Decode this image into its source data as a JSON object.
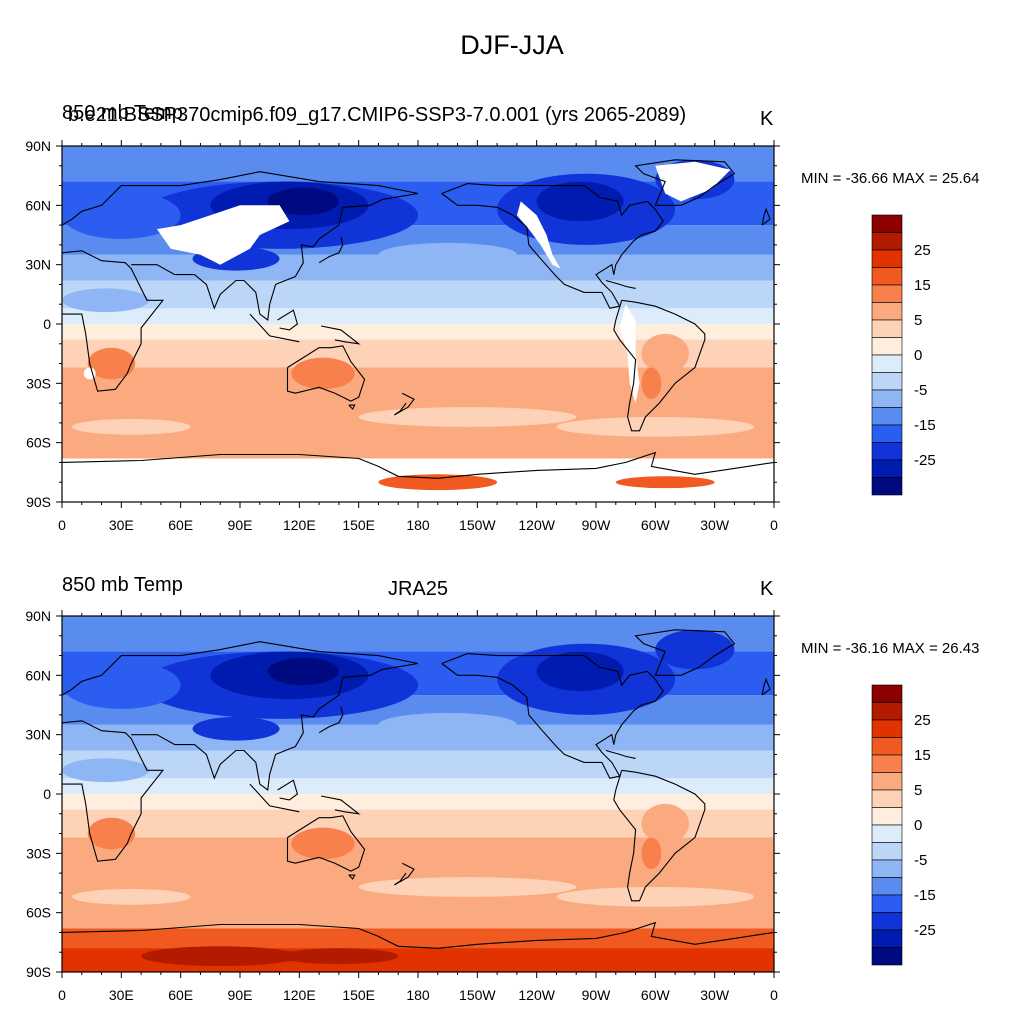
{
  "title": "DJF-JJA",
  "panels": [
    {
      "left_label": "850 mb Temp",
      "left_overlay": "b.e21.BSSP370cmip6.f09_g17.CMIP6-SSP3-7.0.001 (yrs 2065-2089)",
      "center_label": "",
      "units": "K",
      "min_text": "MIN = -36.66",
      "max_text": "MAX =  25.64",
      "missing_land": true
    },
    {
      "left_label": "850 mb Temp",
      "left_overlay": "",
      "center_label": "JRA25",
      "units": "K",
      "min_text": "MIN = -36.16",
      "max_text": "MAX =  26.43",
      "missing_land": false
    }
  ],
  "axes": {
    "lat_labels": [
      "90N",
      "60N",
      "30N",
      "0",
      "30S",
      "60S",
      "90S"
    ],
    "lon_labels": [
      "0",
      "30E",
      "60E",
      "90E",
      "120E",
      "150E",
      "180",
      "150W",
      "120W",
      "90W",
      "60W",
      "30W",
      "0"
    ]
  },
  "colorbar": {
    "labels": [
      "25",
      "15",
      "5",
      "0",
      "-5",
      "-15",
      "-25"
    ],
    "colors": [
      "#8b0000",
      "#b31b00",
      "#e23200",
      "#f05a20",
      "#f8804c",
      "#fbaa80",
      "#fdd2b6",
      "#ffeedd",
      "#dcecfb",
      "#bcd6f8",
      "#8eb6f4",
      "#5a8cf0",
      "#2b5ef0",
      "#1134d8",
      "#001cb0",
      "#000a80"
    ]
  },
  "chart_data": {
    "type": "heatmap",
    "title": "DJF-JJA",
    "variable": "850 mb Temp",
    "units": "K",
    "contour_levels": [
      -35,
      -30,
      -25,
      -20,
      -15,
      -10,
      -5,
      0,
      5,
      10,
      15,
      20,
      25,
      30
    ],
    "panels": [
      {
        "name": "b.e21.BSSP370cmip6.f09_g17.CMIP6-SSP3-7.0.001 (yrs 2065-2089)",
        "min": -36.66,
        "max": 25.64
      },
      {
        "name": "JRA25",
        "min": -36.16,
        "max": 26.43
      }
    ],
    "xlim": [
      "0",
      "0"
    ],
    "ylim": [
      "90S",
      "90N"
    ]
  }
}
